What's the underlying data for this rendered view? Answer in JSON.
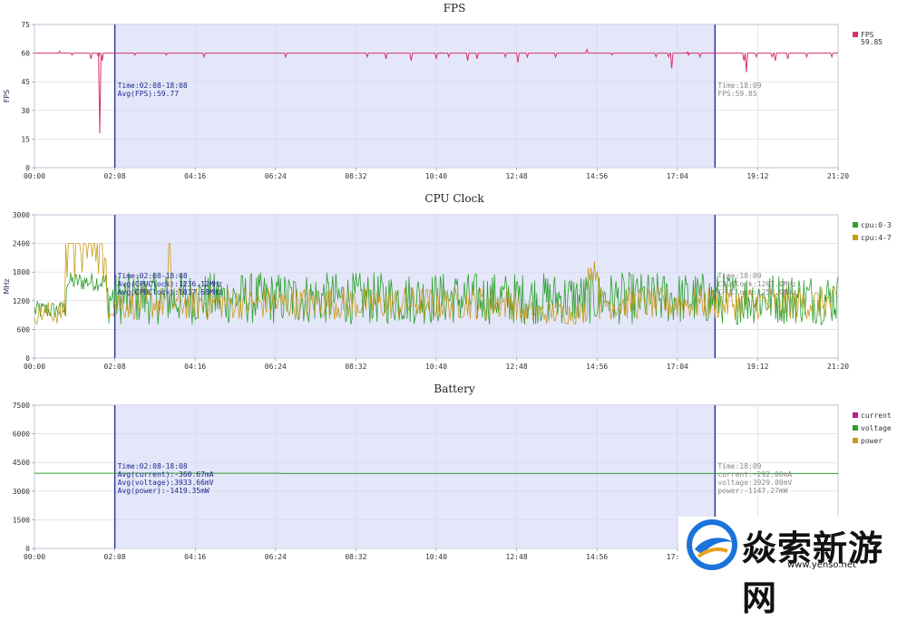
{
  "time_ticks": [
    "00:00",
    "02:08",
    "04:16",
    "06:24",
    "08:32",
    "10:40",
    "12:48",
    "14:56",
    "17:04",
    "19:12",
    "21:20"
  ],
  "colors": {
    "plot_bg": "#ffffff",
    "selection_bg": "#e4e6f9",
    "selection_border": "#2a2f8f",
    "grid": "#d6d6e6",
    "axis": "#7a7a9a",
    "fps": "#d6336c",
    "cpu_0_3": "#2ca02c",
    "cpu_4_7": "#c89b1a",
    "current": "#c2188c",
    "voltage": "#2ca02c",
    "power": "#c89b1a",
    "anno_left": "#1e2a8a",
    "anno_right": "#888888"
  },
  "chart_data": [
    {
      "type": "line",
      "title": "FPS",
      "ylabel": "FPS",
      "ylim": [
        0,
        75
      ],
      "yticks": [
        "0",
        "15",
        "30",
        "45",
        "60",
        "75"
      ],
      "x_range_minutes": [
        0,
        1280
      ],
      "selection_minutes": [
        128,
        1084
      ],
      "grid": true,
      "legend_position": "right",
      "series": [
        {
          "name": "FPS",
          "legend_value": "59.85",
          "baseline": 60,
          "dips": [
            {
              "t": 40,
              "v": 55
            },
            {
              "t": 60,
              "v": 59
            },
            {
              "t": 90,
              "v": 57
            },
            {
              "t": 102,
              "v": 58
            },
            {
              "t": 104,
              "v": 18
            },
            {
              "t": 108,
              "v": 56
            },
            {
              "t": 160,
              "v": 59
            },
            {
              "t": 210,
              "v": 59
            },
            {
              "t": 270,
              "v": 58
            },
            {
              "t": 400,
              "v": 58
            },
            {
              "t": 530,
              "v": 58
            },
            {
              "t": 560,
              "v": 57
            },
            {
              "t": 600,
              "v": 56
            },
            {
              "t": 640,
              "v": 57
            },
            {
              "t": 660,
              "v": 58
            },
            {
              "t": 690,
              "v": 56
            },
            {
              "t": 705,
              "v": 57
            },
            {
              "t": 750,
              "v": 58
            },
            {
              "t": 770,
              "v": 55
            },
            {
              "t": 785,
              "v": 58
            },
            {
              "t": 830,
              "v": 58
            },
            {
              "t": 880,
              "v": 57
            },
            {
              "t": 920,
              "v": 59
            },
            {
              "t": 990,
              "v": 58
            },
            {
              "t": 1010,
              "v": 58
            },
            {
              "t": 1015,
              "v": 52
            },
            {
              "t": 1042,
              "v": 59
            },
            {
              "t": 1060,
              "v": 58
            },
            {
              "t": 1130,
              "v": 56
            },
            {
              "t": 1134,
              "v": 50
            },
            {
              "t": 1150,
              "v": 58
            },
            {
              "t": 1175,
              "v": 58
            },
            {
              "t": 1180,
              "v": 56
            },
            {
              "t": 1200,
              "v": 57
            },
            {
              "t": 1230,
              "v": 58
            },
            {
              "t": 1270,
              "v": 58
            }
          ],
          "spikes": [
            {
              "t": 880,
              "v": 62
            },
            {
              "t": 40,
              "v": 61
            },
            {
              "t": 1040,
              "v": 60.5
            }
          ]
        }
      ],
      "annotations": {
        "left": [
          "Time:02:08-18:08",
          "Avg(FPS):59.77"
        ],
        "right": [
          "Time:18:09",
          "FPS:59.85"
        ]
      }
    },
    {
      "type": "line",
      "title": "CPU Clock",
      "ylabel": "MHz",
      "ylim": [
        0,
        3000
      ],
      "yticks": [
        "0",
        "600",
        "1200",
        "1800",
        "2400",
        "3000"
      ],
      "x_range_minutes": [
        0,
        1280
      ],
      "selection_minutes": [
        128,
        1084
      ],
      "grid": true,
      "legend_position": "right",
      "series": [
        {
          "name": "cpu:0-3",
          "low": 700,
          "high": 1800,
          "mean": 1150
        },
        {
          "name": "cpu:4-7",
          "low": 700,
          "high": 2400,
          "mean": 1100,
          "segments": [
            {
              "from": 0,
              "to": 50,
              "level": 900
            },
            {
              "from": 50,
              "to": 120,
              "level": 2400
            },
            {
              "from": 120,
              "to": 1280,
              "level": 1100
            }
          ],
          "bursts": [
            {
              "t": 215,
              "v": 2400
            },
            {
              "t": 890,
              "v": 2050
            }
          ]
        }
      ],
      "annotations": {
        "left": [
          "Time:02:08-18:08",
          "Avg(CPUClock):1236.12MHz",
          "Avg(CPUClock):1017.68MHz"
        ],
        "right": [
          "Time:18:09",
          "CPUClock:1267.0MHz",
          "CPUClock:1258.0MHz"
        ]
      }
    },
    {
      "type": "line",
      "title": "Battery",
      "ylabel": "",
      "ylim": [
        0,
        7500
      ],
      "yticks": [
        "0",
        "1500",
        "3000",
        "4500",
        "6000",
        "7500"
      ],
      "x_range_minutes": [
        0,
        1280
      ],
      "selection_minutes": [
        128,
        1084
      ],
      "grid": true,
      "legend_position": "right",
      "series": [
        {
          "name": "current",
          "value": null
        },
        {
          "name": "voltage",
          "value": 3935
        },
        {
          "name": "power",
          "value": null
        }
      ],
      "annotations": {
        "left": [
          "Time:02:08-18:08",
          "Avg(current):-360.67mA",
          "Avg(voltage):3933.66mV",
          "Avg(power):-1419.35mW"
        ],
        "right": [
          "Time:18:09",
          "current:-292.00mA",
          "voltage:3929.00mV",
          "power:-1147.27mW"
        ]
      }
    }
  ],
  "watermark": {
    "text": "焱索新游网",
    "url": "www.yenso.net"
  }
}
